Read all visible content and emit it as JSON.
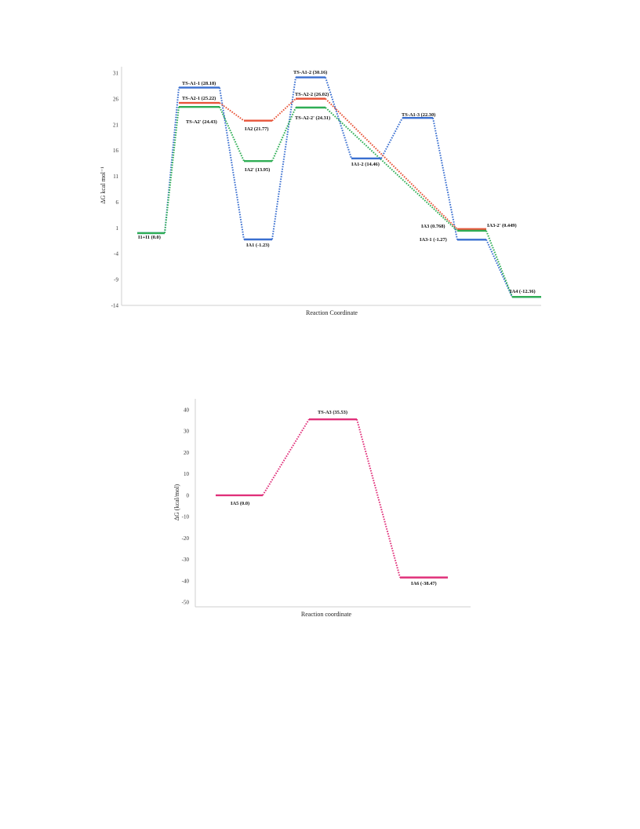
{
  "chart_data": [
    {
      "type": "line",
      "subtype": "energy-profile",
      "xlabel": "Reaction Coordinate",
      "ylabel": "ΔG kcal mol⁻¹",
      "ylim": [
        -14,
        31
      ],
      "yticks": [
        "31",
        "26",
        "21",
        "16",
        "11",
        "6",
        "1",
        "-4",
        "-9",
        "-14"
      ],
      "grid": false,
      "series": [
        {
          "color": "#3a6fd0",
          "points": [
            {
              "x": 1,
              "y": 0.0
            },
            {
              "x": 2,
              "y": 28.18
            },
            {
              "x": 3,
              "y": -1.23
            },
            {
              "x": 4,
              "y": 30.16
            },
            {
              "x": 5,
              "y": 14.46
            },
            {
              "x": 6,
              "y": 22.3
            },
            {
              "x": 7,
              "y": -1.27
            },
            {
              "x": 8,
              "y": -12.36
            }
          ]
        },
        {
          "color": "#e8553a",
          "points": [
            {
              "x": 2,
              "y": 25.22
            },
            {
              "x": 3,
              "y": 21.77
            },
            {
              "x": 4,
              "y": 26.02
            },
            {
              "x": 7,
              "y": 0.768
            }
          ]
        },
        {
          "color": "#2fae55",
          "points": [
            {
              "x": 1,
              "y": 0.0
            },
            {
              "x": 2,
              "y": 24.43
            },
            {
              "x": 3,
              "y": 13.95
            },
            {
              "x": 4,
              "y": 24.31
            },
            {
              "x": 7,
              "y": 0.449
            },
            {
              "x": 8,
              "y": -12.36
            }
          ]
        }
      ],
      "annotations": [
        {
          "text": "I1+I1 (0.0)"
        },
        {
          "text": "TS-A1-1 (28.18)"
        },
        {
          "text": "TS-A2-1 (25.22)"
        },
        {
          "text": "TS-A2' (24.43)"
        },
        {
          "text": "IA2 (21.77)"
        },
        {
          "text": "IA2' (13.95)"
        },
        {
          "text": "IA1 (-1.23)"
        },
        {
          "text": "TS-A1-2 (30.16)"
        },
        {
          "text": "TS-A2-2 (26.02)"
        },
        {
          "text": "TS-A2-2' (24.31)"
        },
        {
          "text": "IA1-2 (14.46)"
        },
        {
          "text": "TS-A1-3 (22.30)"
        },
        {
          "text": "IA3 (0.768)"
        },
        {
          "text": "IA3-2' (0.449)"
        },
        {
          "text": "IA3-1 (-1.27)"
        },
        {
          "text": "IA4 (-12.36)"
        }
      ]
    },
    {
      "type": "line",
      "subtype": "energy-profile",
      "xlabel": "Reaction coordinate",
      "ylabel": "ΔG (kcal/mol)",
      "ylim": [
        -50,
        40
      ],
      "yticks": [
        "40",
        "30",
        "20",
        "10",
        "0",
        "-10",
        "-20",
        "-30",
        "-40",
        "-50"
      ],
      "grid": false,
      "series": [
        {
          "color": "#e0307a",
          "points": [
            {
              "x": 1,
              "y": 0.0
            },
            {
              "x": 2,
              "y": 35.53
            },
            {
              "x": 3,
              "y": -38.47
            }
          ]
        }
      ],
      "annotations": [
        {
          "text": "IA5 (0.0)"
        },
        {
          "text": "TS-A3 (35.53)"
        },
        {
          "text": "IA6 (-38.47)"
        }
      ]
    }
  ]
}
